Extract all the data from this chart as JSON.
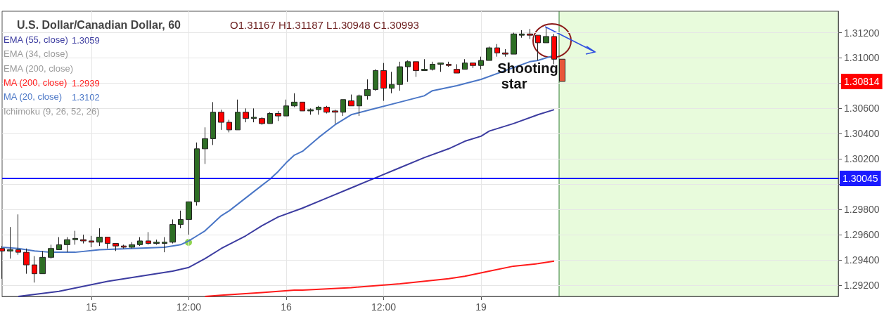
{
  "chart_data": {
    "type": "candlestick",
    "title": "U.S. Dollar/Canadian Dollar, 60",
    "subtitle": "O1.31167 H1.31187 L1.30948 C1.30993",
    "categories": [
      null,
      null,
      null,
      null,
      null,
      null,
      null,
      null,
      null,
      null,
      null,
      "15",
      null,
      null,
      null,
      null,
      null,
      null,
      null,
      null,
      null,
      null,
      null,
      "12:00",
      null,
      null,
      null,
      null,
      null,
      null,
      null,
      null,
      null,
      null,
      null,
      "16",
      null,
      null,
      null,
      null,
      null,
      null,
      null,
      null,
      null,
      null,
      null,
      "12:00",
      null,
      null,
      null,
      null,
      null,
      null,
      null,
      null,
      null,
      null,
      null,
      "19",
      null,
      null,
      null,
      null,
      null,
      null,
      null,
      null,
      null,
      null,
      null,
      null,
      null,
      null,
      null,
      null,
      null,
      null,
      null,
      null,
      null,
      null,
      null,
      null,
      null,
      null,
      null,
      null,
      null,
      null,
      null,
      null,
      null,
      null,
      null,
      null,
      null,
      null,
      null,
      null,
      null,
      null,
      null,
      null
    ],
    "ohlc": [
      [
        1.2949,
        1.2951,
        1.2925,
        1.2947
      ],
      [
        1.2947,
        1.2966,
        1.2941,
        1.2948
      ],
      [
        1.2948,
        1.2976,
        1.2944,
        1.2946
      ],
      [
        1.2946,
        1.2949,
        1.2929,
        1.2936
      ],
      [
        1.2936,
        1.2943,
        1.2922,
        1.2929
      ],
      [
        1.2929,
        1.2947,
        1.2929,
        1.2942
      ],
      [
        1.2942,
        1.2952,
        1.2941,
        1.2949
      ],
      [
        1.2948,
        1.2958,
        1.2948,
        1.2952
      ],
      [
        1.2952,
        1.2958,
        1.2946,
        1.2956
      ],
      [
        1.2956,
        1.2963,
        1.2952,
        1.2957
      ],
      [
        1.2956,
        1.296,
        1.2953,
        1.2955
      ],
      [
        1.2955,
        1.2959,
        1.295,
        1.2954
      ],
      [
        1.2954,
        1.2965,
        1.2951,
        1.2958
      ],
      [
        1.2958,
        1.2958,
        1.2949,
        1.2953
      ],
      [
        1.2953,
        1.2953,
        1.2947,
        1.2951
      ],
      [
        1.2951,
        1.2952,
        1.2949,
        1.295
      ],
      [
        1.295,
        1.2954,
        1.2949,
        1.2952
      ],
      [
        1.2952,
        1.2958,
        1.2951,
        1.2955
      ],
      [
        1.2955,
        1.2962,
        1.2952,
        1.2953
      ],
      [
        1.2953,
        1.2956,
        1.2952,
        1.2954
      ],
      [
        1.2953,
        1.2958,
        1.2946,
        1.2954
      ],
      [
        1.2954,
        1.2972,
        1.2953,
        1.2968
      ],
      [
        1.2968,
        1.2979,
        1.2965,
        1.2972
      ],
      [
        1.2972,
        1.2986,
        1.296,
        1.2986
      ],
      [
        1.2986,
        1.3033,
        1.2983,
        1.3028
      ],
      [
        1.3028,
        1.3045,
        1.3016,
        1.3036
      ],
      [
        1.3036,
        1.3065,
        1.3031,
        1.3057
      ],
      [
        1.3057,
        1.3059,
        1.3043,
        1.3049
      ],
      [
        1.3049,
        1.3051,
        1.3041,
        1.3043
      ],
      [
        1.3043,
        1.3067,
        1.3043,
        1.3057
      ],
      [
        1.3057,
        1.306,
        1.3049,
        1.3052
      ],
      [
        1.3052,
        1.306,
        1.3049,
        1.3053
      ],
      [
        1.3052,
        1.3053,
        1.3047,
        1.3048
      ],
      [
        1.3048,
        1.3057,
        1.3048,
        1.3056
      ],
      [
        1.3056,
        1.3058,
        1.305,
        1.3054
      ],
      [
        1.3054,
        1.3067,
        1.3054,
        1.3062
      ],
      [
        1.3062,
        1.3072,
        1.3061,
        1.3065
      ],
      [
        1.3065,
        1.3065,
        1.3058,
        1.3058
      ],
      [
        1.3058,
        1.306,
        1.3055,
        1.3059
      ],
      [
        1.3059,
        1.3062,
        1.3055,
        1.3061
      ],
      [
        1.3061,
        1.3062,
        1.3056,
        1.3057
      ],
      [
        1.3058,
        1.3059,
        1.3048,
        1.3057
      ],
      [
        1.3057,
        1.3067,
        1.3054,
        1.3067
      ],
      [
        1.3066,
        1.3071,
        1.3062,
        1.3062
      ],
      [
        1.3062,
        1.3071,
        1.3054,
        1.307
      ],
      [
        1.307,
        1.3083,
        1.3067,
        1.3075
      ],
      [
        1.3075,
        1.3091,
        1.3074,
        1.309
      ],
      [
        1.309,
        1.3096,
        1.3066,
        1.3076
      ],
      [
        1.3076,
        1.3089,
        1.3072,
        1.3079
      ],
      [
        1.3079,
        1.3097,
        1.3074,
        1.3093
      ],
      [
        1.3093,
        1.3098,
        1.3081,
        1.3097
      ],
      [
        1.3097,
        1.3097,
        1.3085,
        1.309
      ],
      [
        1.309,
        1.3099,
        1.309,
        1.3091
      ],
      [
        1.3091,
        1.3097,
        1.309,
        1.3095
      ],
      [
        1.3095,
        1.3096,
        1.3089,
        1.3096
      ],
      [
        1.3095,
        1.3097,
        1.3093,
        1.3094
      ],
      [
        1.3091,
        1.3095,
        1.3088,
        1.3088
      ],
      [
        1.3091,
        1.3099,
        1.3091,
        1.3096
      ],
      [
        1.3096,
        1.3096,
        1.3092,
        1.3094
      ],
      [
        1.3094,
        1.3101,
        1.3091,
        1.3098
      ],
      [
        1.3098,
        1.3109,
        1.3098,
        1.3108
      ],
      [
        1.3108,
        1.3111,
        1.3101,
        1.3104
      ],
      [
        1.3104,
        1.3107,
        1.3101,
        1.3103
      ],
      [
        1.3103,
        1.312,
        1.3103,
        1.3119
      ],
      [
        1.3118,
        1.3122,
        1.3116,
        1.3119
      ],
      [
        1.3119,
        1.3123,
        1.3115,
        1.3118
      ],
      [
        1.3118,
        1.3118,
        1.3098,
        1.3112
      ],
      [
        1.3112,
        1.3124,
        1.3112,
        1.3117
      ],
      [
        1.3117,
        1.3119,
        1.3095,
        1.3099
      ],
      [
        1.3099,
        1.3099,
        1.30814,
        1.30814
      ],
      null,
      null,
      null,
      null,
      null,
      null,
      null,
      null,
      null,
      null,
      null,
      null,
      null,
      null,
      null,
      null,
      null,
      null,
      null,
      null,
      null,
      null,
      null,
      null,
      null,
      null,
      null,
      null,
      null,
      null,
      null,
      null,
      null,
      null
    ],
    "colors": [
      "#ff0000",
      "#2e6e25",
      "#ff0000",
      "#ff0000",
      "#ff0000",
      "#2e6e25",
      "#2e6e25",
      "#2e6e25",
      "#2e6e25",
      "#2e6e25",
      "#ff0000",
      "#ff0000",
      "#2e6e25",
      "#ff0000",
      "#ff0000",
      "#ff0000",
      "#2e6e25",
      "#2e6e25",
      "#ff0000",
      "#2e6e25",
      "#2e6e25",
      "#2e6e25",
      "#2e6e25",
      "#2e6e25",
      "#2e6e25",
      "#2e6e25",
      "#2e6e25",
      "#ff0000",
      "#ff0000",
      "#2e6e25",
      "#ff0000",
      "#2e6e25",
      "#ff0000",
      "#2e6e25",
      "#ff0000",
      "#2e6e25",
      "#2e6e25",
      "#ff0000",
      "#2e6e25",
      "#2e6e25",
      "#ff0000",
      "#ff0000",
      "#2e6e25",
      "#ff0000",
      "#2e6e25",
      "#2e6e25",
      "#2e6e25",
      "#ff0000",
      "#2e6e25",
      "#2e6e25",
      "#2e6e25",
      "#ff0000",
      "#2e6e25",
      "#2e6e25",
      "#2e6e25",
      "#ff0000",
      "#ff0000",
      "#2e6e25",
      "#ff0000",
      "#2e6e25",
      "#2e6e25",
      "#ff0000",
      "#ff0000",
      "#2e6e25",
      "#2e6e25",
      "#ff0000",
      "#ff0000",
      "#2e6e25",
      "#ff0000",
      "#e8553a",
      null,
      null,
      null,
      null,
      null,
      null,
      null,
      null,
      null,
      null,
      null,
      null,
      null,
      null,
      null,
      null,
      null,
      null,
      null,
      null,
      null,
      null,
      null,
      null,
      null,
      null,
      null,
      null,
      null,
      null,
      null,
      null,
      null,
      null
    ],
    "series": [
      {
        "name": "EMA (55, close)",
        "type": "line",
        "color": "#3c3ca0",
        "values": [
          null,
          null,
          1.2911,
          null,
          null,
          null,
          null,
          1.2915,
          null,
          null,
          null,
          null,
          null,
          1.2923,
          null,
          null,
          null,
          1.2927,
          null,
          null,
          null,
          1.2931,
          null,
          1.2934,
          null,
          1.2941,
          null,
          1.2949,
          null,
          null,
          1.2959,
          null,
          1.2967,
          null,
          1.2974,
          null,
          null,
          1.2981,
          null,
          null,
          1.2989,
          null,
          null,
          1.2997,
          null,
          null,
          1.3005,
          null,
          null,
          1.3013,
          null,
          null,
          1.3021,
          null,
          null,
          1.3028,
          null,
          1.3034,
          null,
          1.3038,
          1.3042,
          null,
          null,
          1.3048,
          null,
          null,
          1.3055,
          null,
          1.3059,
          null,
          null,
          null,
          null,
          null,
          null,
          null,
          null,
          null,
          null,
          null,
          null,
          null,
          null,
          null,
          null,
          null,
          null,
          null,
          null,
          null,
          null,
          null,
          null,
          null,
          null,
          null,
          null,
          null,
          null,
          null,
          null,
          null,
          null,
          null
        ]
      },
      {
        "name": "EMA (34, close)",
        "type": "line",
        "color": "#9a9a9a",
        "values": [
          null,
          null,
          null,
          null,
          null,
          null,
          null,
          null,
          null,
          null,
          null,
          null,
          null,
          null,
          null,
          null,
          null,
          null,
          null,
          null,
          null,
          null,
          null,
          null,
          null,
          null,
          null,
          null,
          null,
          null,
          null,
          null,
          null,
          null,
          null,
          null,
          null,
          null,
          null,
          null,
          null,
          null,
          null,
          null,
          null,
          null,
          null,
          null,
          null,
          null,
          null,
          null,
          null,
          null,
          null,
          null,
          null,
          null,
          null,
          null,
          null,
          null,
          null,
          null,
          null,
          null,
          null,
          null,
          null,
          null,
          null,
          null,
          null,
          null,
          null,
          null,
          null,
          null,
          null,
          null,
          null,
          null,
          null,
          null,
          null,
          null,
          null,
          null,
          null,
          null,
          null,
          null,
          null,
          null,
          null,
          null,
          null,
          null,
          null,
          null,
          null,
          null,
          null,
          null
        ]
      },
      {
        "name": "EMA (200, close)",
        "type": "line",
        "color": "#9a9a9a",
        "values": [
          null,
          null,
          null,
          null,
          null,
          null,
          null,
          null,
          null,
          null,
          null,
          null,
          null,
          null,
          null,
          null,
          null,
          null,
          null,
          null,
          null,
          null,
          null,
          null,
          null,
          null,
          null,
          null,
          null,
          null,
          null,
          null,
          null,
          null,
          null,
          null,
          null,
          null,
          null,
          null,
          null,
          null,
          null,
          null,
          null,
          null,
          null,
          null,
          null,
          null,
          null,
          null,
          null,
          null,
          null,
          null,
          null,
          null,
          null,
          null,
          null,
          null,
          null,
          null,
          null,
          null,
          null,
          null,
          null,
          null,
          null,
          null,
          null,
          null,
          null,
          null,
          null,
          null,
          null,
          null,
          null,
          null,
          null,
          null,
          null,
          null,
          null,
          null,
          null,
          null,
          null,
          null,
          null,
          null,
          null,
          null,
          null,
          null,
          null,
          null,
          null,
          null,
          null,
          null
        ]
      },
      {
        "name": "MA (200, close)",
        "type": "line",
        "color": "#ff1a1a",
        "values": [
          null,
          null,
          null,
          null,
          null,
          null,
          null,
          null,
          null,
          null,
          null,
          null,
          null,
          null,
          null,
          null,
          null,
          null,
          null,
          null,
          null,
          null,
          null,
          null,
          null,
          1.2911,
          null,
          1.2912,
          null,
          null,
          null,
          null,
          1.2914,
          null,
          null,
          null,
          1.2916,
          1.2916,
          null,
          null,
          null,
          null,
          null,
          1.2918,
          null,
          null,
          null,
          null,
          null,
          1.2921,
          null,
          null,
          null,
          null,
          null,
          1.2925,
          null,
          1.2927,
          null,
          null,
          1.2931,
          null,
          null,
          1.2935,
          null,
          null,
          1.2937,
          null,
          1.2939,
          null,
          null,
          null,
          null,
          null,
          null,
          null,
          null,
          null,
          null,
          null,
          null,
          null,
          null,
          null,
          null,
          null,
          null,
          null,
          null,
          null,
          null,
          null,
          null,
          null,
          null,
          null,
          null,
          null,
          null,
          null,
          null,
          null,
          null,
          null
        ]
      },
      {
        "name": "MA (20, close)",
        "type": "line",
        "color": "#4a76c6",
        "values": [
          1.295,
          null,
          1.2949,
          null,
          1.2947,
          null,
          1.2946,
          null,
          null,
          1.2946,
          null,
          null,
          1.2948,
          null,
          null,
          null,
          1.2949,
          null,
          null,
          null,
          1.295,
          null,
          1.2952,
          1.2955,
          1.2959,
          1.2963,
          1.2969,
          1.2975,
          1.2979,
          1.2984,
          1.2989,
          1.2994,
          1.2999,
          1.3004,
          1.301,
          1.3017,
          1.3023,
          1.3026,
          null,
          1.3037,
          null,
          1.3047,
          null,
          1.3055,
          null,
          null,
          1.306,
          null,
          null,
          1.3065,
          null,
          null,
          1.307,
          1.3074,
          null,
          null,
          1.3078,
          null,
          null,
          1.3083,
          null,
          null,
          1.309,
          null,
          null,
          1.3097,
          1.3098,
          null,
          1.3102,
          null,
          null,
          null,
          null,
          null,
          null,
          null,
          null,
          null,
          null,
          null,
          null,
          null,
          null,
          null,
          null,
          null,
          null,
          null,
          null,
          null,
          null,
          null,
          null,
          null,
          null,
          null,
          null,
          null,
          null,
          null,
          null,
          null,
          null,
          null
        ]
      },
      {
        "name": "Ichimoku (9, 26, 52, 26)",
        "type": "line",
        "color": "#9a9a9a",
        "values": [
          null,
          null,
          null,
          null,
          null,
          null,
          null,
          null,
          null,
          null,
          null,
          null,
          null,
          null,
          null,
          null,
          null,
          null,
          null,
          null,
          null,
          null,
          null,
          null,
          null,
          null,
          null,
          null,
          null,
          null,
          null,
          null,
          null,
          null,
          null,
          null,
          null,
          null,
          null,
          null,
          null,
          null,
          null,
          null,
          null,
          null,
          null,
          null,
          null,
          null,
          null,
          null,
          null,
          null,
          null,
          null,
          null,
          null,
          null,
          null,
          null,
          null,
          null,
          null,
          null,
          null,
          null,
          null,
          null,
          null,
          null,
          null,
          null,
          null,
          null,
          null,
          null,
          null,
          null,
          null,
          null,
          null,
          null,
          null,
          null,
          null,
          null,
          null,
          null,
          null,
          null,
          null,
          null,
          null,
          null,
          null,
          null,
          null,
          null,
          null,
          null,
          null,
          null,
          null
        ]
      }
    ],
    "ylim": [
      1.2911,
      1.3137
    ],
    "yticks": [
      {
        "value": 1.292,
        "label": "1.29200"
      },
      {
        "value": 1.294,
        "label": "1.29400"
      },
      {
        "value": 1.296,
        "label": "1.29600"
      },
      {
        "value": 1.298,
        "label": "1.29800"
      },
      {
        "value": 1.3,
        "label": null
      },
      {
        "value": 1.302,
        "label": "1.30200"
      },
      {
        "value": 1.304,
        "label": "1.30400"
      },
      {
        "value": 1.306,
        "label": "1.30600"
      },
      {
        "value": 1.308,
        "label": null
      },
      {
        "value": 1.31,
        "label": "1.31000"
      },
      {
        "value": 1.312,
        "label": "1.31200"
      }
    ],
    "grid": true,
    "legend": "top left",
    "marker": "none",
    "line_style": "solid",
    "ref_lines": [
      {
        "axis": "y",
        "value": 1.30045,
        "label": "1.30045",
        "color": "#1a1aff"
      }
    ],
    "annotations": [
      "Shooting star",
      "1.30814",
      "1.3059",
      "1.2939",
      "1.3102"
    ]
  }
}
